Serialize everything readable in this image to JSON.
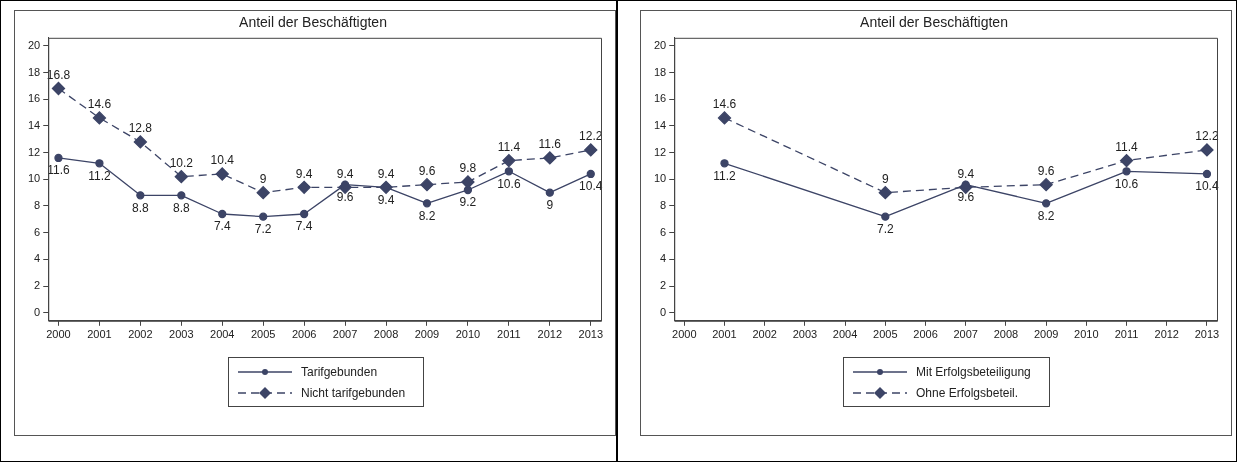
{
  "chart_data": [
    {
      "type": "line",
      "title": "Anteil der Beschäftigten",
      "x": [
        2000,
        2001,
        2002,
        2003,
        2004,
        2005,
        2006,
        2007,
        2008,
        2009,
        2010,
        2011,
        2012,
        2013
      ],
      "xlim": [
        1999.75,
        2013.25
      ],
      "xticks": [
        2000,
        2001,
        2002,
        2003,
        2004,
        2005,
        2006,
        2007,
        2008,
        2009,
        2010,
        2011,
        2012,
        2013
      ],
      "ylim": [
        -0.6,
        20.6
      ],
      "yticks": [
        0,
        2,
        4,
        6,
        8,
        10,
        12,
        14,
        16,
        18,
        20
      ],
      "grid": false,
      "legend": "bottom",
      "data_labels": true,
      "series": [
        {
          "name": "Tarifgebunden",
          "color": "#3c4466",
          "marker": "circle",
          "line_style": "solid",
          "values": [
            11.6,
            11.2,
            8.8,
            8.8,
            7.4,
            7.2,
            7.4,
            9.6,
            9.4,
            8.2,
            9.2,
            10.6,
            9,
            10.4
          ]
        },
        {
          "name": "Nicht tarifgebunden",
          "color": "#3c4466",
          "marker": "diamond",
          "line_style": "dashed",
          "values": [
            16.8,
            14.6,
            12.8,
            10.2,
            10.4,
            9,
            9.4,
            9.4,
            9.4,
            9.6,
            9.8,
            11.4,
            11.6,
            12.2
          ]
        }
      ]
    },
    {
      "type": "line",
      "title": "Anteil der Beschäftigten",
      "x": [
        2001,
        2005,
        2007,
        2009,
        2011,
        2013
      ],
      "xlim": [
        1999.75,
        2013.25
      ],
      "xticks": [
        2000,
        2001,
        2002,
        2003,
        2004,
        2005,
        2006,
        2007,
        2008,
        2009,
        2010,
        2011,
        2012,
        2013
      ],
      "ylim": [
        -0.6,
        20.6
      ],
      "yticks": [
        0,
        2,
        4,
        6,
        8,
        10,
        12,
        14,
        16,
        18,
        20
      ],
      "grid": false,
      "legend": "bottom",
      "data_labels": true,
      "series": [
        {
          "name": "Mit Erfolgsbeteiligung",
          "color": "#3c4466",
          "marker": "circle",
          "line_style": "solid",
          "values": [
            11.2,
            7.2,
            9.6,
            8.2,
            10.6,
            10.4
          ]
        },
        {
          "name": "Ohne Erfolgsbeteil.",
          "color": "#3c4466",
          "marker": "diamond",
          "line_style": "dashed",
          "values": [
            14.6,
            9,
            9.4,
            9.6,
            11.4,
            12.2
          ]
        }
      ]
    }
  ]
}
